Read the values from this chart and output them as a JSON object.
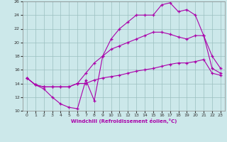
{
  "xlabel": "Windchill (Refroidissement éolien,°C)",
  "xlim": [
    -0.5,
    23.5
  ],
  "ylim": [
    10,
    26
  ],
  "xticks": [
    0,
    1,
    2,
    3,
    4,
    5,
    6,
    7,
    8,
    9,
    10,
    11,
    12,
    13,
    14,
    15,
    16,
    17,
    18,
    19,
    20,
    21,
    22,
    23
  ],
  "yticks": [
    10,
    12,
    14,
    16,
    18,
    20,
    22,
    24,
    26
  ],
  "bg_color": "#cce8ea",
  "line_color": "#aa00aa",
  "grid_color": "#9bbfbf",
  "line1_x": [
    0,
    1,
    2,
    3,
    4,
    5,
    6,
    7,
    8,
    9,
    10,
    11,
    12,
    13,
    14,
    15,
    16,
    17,
    18,
    19,
    20,
    21,
    22,
    23
  ],
  "line1_y": [
    14.8,
    13.8,
    13.2,
    12.0,
    11.0,
    10.5,
    10.3,
    14.5,
    11.5,
    18.0,
    20.5,
    22.0,
    23.0,
    24.0,
    24.0,
    24.0,
    25.5,
    25.8,
    24.5,
    24.8,
    24.0,
    21.0,
    18.0,
    16.2
  ],
  "line2_x": [
    0,
    1,
    2,
    3,
    4,
    5,
    6,
    7,
    8,
    9,
    10,
    11,
    12,
    13,
    14,
    15,
    16,
    17,
    18,
    19,
    20,
    21,
    22,
    23
  ],
  "line2_y": [
    14.8,
    13.8,
    13.5,
    13.5,
    13.5,
    13.5,
    14.0,
    15.5,
    17.0,
    18.0,
    19.0,
    19.5,
    20.0,
    20.5,
    21.0,
    21.5,
    21.5,
    21.2,
    20.8,
    20.5,
    21.0,
    21.0,
    16.2,
    15.5
  ],
  "line3_x": [
    0,
    1,
    2,
    3,
    4,
    5,
    6,
    7,
    8,
    9,
    10,
    11,
    12,
    13,
    14,
    15,
    16,
    17,
    18,
    19,
    20,
    21,
    22,
    23
  ],
  "line3_y": [
    14.8,
    13.8,
    13.5,
    13.5,
    13.5,
    13.5,
    14.0,
    14.0,
    14.5,
    14.8,
    15.0,
    15.2,
    15.5,
    15.8,
    16.0,
    16.2,
    16.5,
    16.8,
    17.0,
    17.0,
    17.2,
    17.5,
    15.5,
    15.2
  ]
}
